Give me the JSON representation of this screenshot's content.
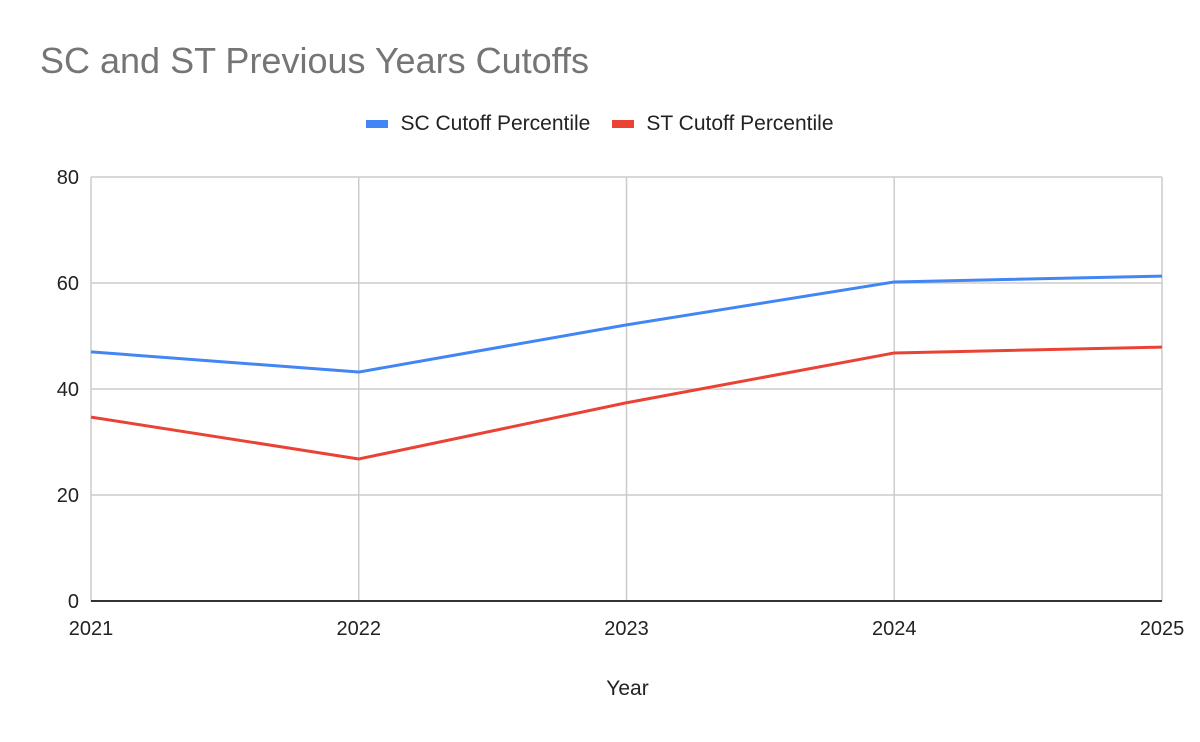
{
  "chart_data": {
    "type": "line",
    "title": "SC and ST Previous Years Cutoffs",
    "xlabel": "Year",
    "ylabel": "",
    "categories": [
      "2021",
      "2022",
      "2023",
      "2024",
      "2025"
    ],
    "series": [
      {
        "name": "SC Cutoff Percentile",
        "color": "#4285f4",
        "values": [
          47.0,
          43.2,
          52.1,
          60.2,
          61.3
        ]
      },
      {
        "name": "ST Cutoff Percentile",
        "color": "#ea4335",
        "values": [
          34.7,
          26.8,
          37.4,
          46.8,
          47.9
        ]
      }
    ],
    "ylim": [
      0,
      80
    ],
    "yticks": [
      "0",
      "20",
      "40",
      "60",
      "80"
    ],
    "grid": true,
    "legend_position": "top"
  }
}
